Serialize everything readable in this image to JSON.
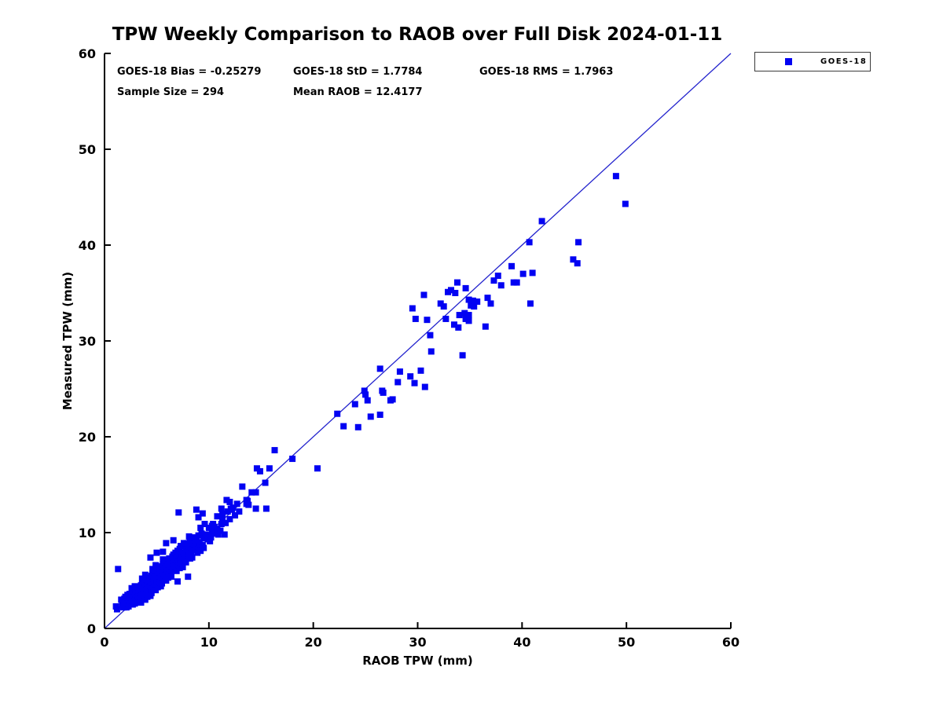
{
  "title": "TPW Weekly Comparison to RAOB over Full Disk 2024-01-11",
  "stats": {
    "bias": "GOES-18 Bias = -0.25279",
    "std": "GOES-18 StD = 1.7784",
    "rms": "GOES-18 RMS = 1.7963",
    "sample_size": "Sample Size = 294",
    "mean_raob": "Mean RAOB = 12.4177"
  },
  "legend": {
    "items": [
      {
        "label": "GOES-18",
        "marker_color": "#0202f2"
      }
    ]
  },
  "colors": {
    "marker": "#0202f2",
    "reference_line": "#2323cd",
    "axis": "#000000",
    "background": "#ffffff"
  },
  "chart_data": {
    "type": "scatter",
    "title": "TPW Weekly Comparison to RAOB over Full Disk 2024-01-11",
    "xlabel": "RAOB TPW (mm)",
    "ylabel": "Measured TPW (mm)",
    "xlim": [
      0,
      60
    ],
    "ylim": [
      0,
      60
    ],
    "xticks": [
      0,
      10,
      20,
      30,
      40,
      50,
      60
    ],
    "yticks": [
      0,
      10,
      20,
      30,
      40,
      50,
      60
    ],
    "grid": false,
    "legend_position": "outside-top-right",
    "stats": {
      "bias": -0.25279,
      "std": 1.7784,
      "rms": 1.7963,
      "sample_size": 294,
      "mean_raob": 12.4177
    },
    "reference_line": {
      "from": [
        0,
        0
      ],
      "to": [
        60,
        60
      ]
    },
    "series": [
      {
        "name": "GOES-18",
        "marker": "square",
        "marker_size_px": 8,
        "color": "#0202f2",
        "points": [
          [
            1.1,
            2.3
          ],
          [
            1.2,
            2.0
          ],
          [
            1.3,
            6.2
          ],
          [
            1.6,
            3.0
          ],
          [
            1.7,
            2.4
          ],
          [
            1.8,
            2.9
          ],
          [
            1.8,
            2.2
          ],
          [
            1.9,
            3.1
          ],
          [
            1.9,
            2.7
          ],
          [
            2.0,
            2.5
          ],
          [
            2.0,
            3.3
          ],
          [
            2.1,
            2.8
          ],
          [
            2.1,
            2.2
          ],
          [
            2.2,
            3.5
          ],
          [
            2.2,
            2.6
          ],
          [
            2.3,
            3.0
          ],
          [
            2.3,
            2.3
          ],
          [
            2.4,
            3.6
          ],
          [
            2.4,
            2.8
          ],
          [
            2.5,
            3.2
          ],
          [
            2.5,
            2.5
          ],
          [
            2.6,
            2.9
          ],
          [
            2.6,
            3.6
          ],
          [
            2.6,
            4.2
          ],
          [
            2.7,
            2.5
          ],
          [
            2.7,
            3.2
          ],
          [
            2.8,
            3.9
          ],
          [
            2.8,
            2.8
          ],
          [
            2.9,
            3.4
          ],
          [
            2.9,
            2.6
          ],
          [
            2.9,
            4.4
          ],
          [
            3.0,
            4.1
          ],
          [
            3.0,
            3.0
          ],
          [
            3.0,
            3.6
          ],
          [
            3.1,
            2.8
          ],
          [
            3.1,
            3.9
          ],
          [
            3.2,
            3.3
          ],
          [
            3.2,
            4.3
          ],
          [
            3.3,
            2.9
          ],
          [
            3.3,
            3.7
          ],
          [
            3.4,
            4.0
          ],
          [
            3.4,
            3.1
          ],
          [
            3.5,
            4.5
          ],
          [
            3.5,
            3.4
          ],
          [
            3.5,
            2.7
          ],
          [
            3.6,
            3.8
          ],
          [
            3.6,
            4.6
          ],
          [
            3.6,
            5.2
          ],
          [
            3.7,
            3.2
          ],
          [
            3.7,
            4.2
          ],
          [
            3.8,
            4.9
          ],
          [
            3.8,
            3.5
          ],
          [
            3.9,
            4.4
          ],
          [
            3.9,
            3.0
          ],
          [
            3.9,
            5.6
          ],
          [
            4.0,
            5.1
          ],
          [
            4.0,
            4.0
          ],
          [
            4.0,
            3.6
          ],
          [
            4.1,
            4.7
          ],
          [
            4.1,
            3.3
          ],
          [
            4.2,
            5.3
          ],
          [
            4.2,
            4.2
          ],
          [
            4.3,
            3.8
          ],
          [
            4.3,
            4.9
          ],
          [
            4.4,
            4.4
          ],
          [
            4.4,
            3.4
          ],
          [
            4.4,
            7.4
          ],
          [
            4.5,
            5.5
          ],
          [
            4.5,
            4.1
          ],
          [
            4.5,
            3.7
          ],
          [
            4.6,
            4.8
          ],
          [
            4.6,
            5.7
          ],
          [
            4.6,
            6.2
          ],
          [
            4.7,
            4.2
          ],
          [
            4.7,
            5.2
          ],
          [
            4.8,
            5.9
          ],
          [
            4.8,
            4.5
          ],
          [
            4.9,
            5.4
          ],
          [
            4.9,
            4.0
          ],
          [
            4.9,
            6.6
          ],
          [
            5.0,
            6.1
          ],
          [
            5.0,
            5.0
          ],
          [
            5.0,
            4.6
          ],
          [
            5.0,
            7.9
          ],
          [
            5.1,
            5.7
          ],
          [
            5.1,
            4.3
          ],
          [
            5.2,
            6.3
          ],
          [
            5.2,
            5.2
          ],
          [
            5.3,
            4.8
          ],
          [
            5.3,
            5.9
          ],
          [
            5.4,
            5.4
          ],
          [
            5.4,
            4.4
          ],
          [
            5.5,
            6.5
          ],
          [
            5.5,
            5.1
          ],
          [
            5.5,
            4.7
          ],
          [
            5.6,
            5.8
          ],
          [
            5.6,
            6.7
          ],
          [
            5.6,
            7.2
          ],
          [
            5.6,
            8.0
          ],
          [
            5.7,
            5.2
          ],
          [
            5.7,
            6.2
          ],
          [
            5.8,
            6.9
          ],
          [
            5.8,
            5.5
          ],
          [
            5.9,
            6.4
          ],
          [
            5.9,
            5.0
          ],
          [
            5.9,
            8.9
          ],
          [
            6.0,
            7.1
          ],
          [
            6.0,
            6.0
          ],
          [
            6.0,
            5.6
          ],
          [
            6.1,
            6.7
          ],
          [
            6.1,
            5.3
          ],
          [
            6.2,
            7.3
          ],
          [
            6.2,
            6.2
          ],
          [
            6.3,
            5.8
          ],
          [
            6.3,
            6.9
          ],
          [
            6.4,
            6.4
          ],
          [
            6.4,
            5.4
          ],
          [
            6.5,
            7.5
          ],
          [
            6.5,
            6.1
          ],
          [
            6.6,
            6.8
          ],
          [
            6.6,
            7.7
          ],
          [
            6.6,
            9.2
          ],
          [
            6.7,
            6.2
          ],
          [
            6.7,
            7.2
          ],
          [
            6.8,
            7.9
          ],
          [
            6.8,
            6.5
          ],
          [
            6.9,
            7.4
          ],
          [
            6.9,
            6.0
          ],
          [
            7.0,
            8.1
          ],
          [
            7.0,
            7.0
          ],
          [
            7.0,
            4.9
          ],
          [
            7.1,
            6.6
          ],
          [
            7.1,
            7.7
          ],
          [
            7.1,
            12.1
          ],
          [
            7.2,
            6.3
          ],
          [
            7.2,
            8.3
          ],
          [
            7.3,
            7.2
          ],
          [
            7.3,
            6.8
          ],
          [
            7.3,
            8.6
          ],
          [
            7.4,
            7.9
          ],
          [
            7.4,
            7.4
          ],
          [
            7.5,
            6.4
          ],
          [
            7.6,
            7.8
          ],
          [
            7.6,
            8.7
          ],
          [
            7.6,
            8.9
          ],
          [
            7.7,
            7.2
          ],
          [
            7.8,
            8.2
          ],
          [
            7.8,
            6.9
          ],
          [
            7.9,
            8.9
          ],
          [
            8.0,
            8.0
          ],
          [
            8.0,
            7.5
          ],
          [
            8.0,
            5.4
          ],
          [
            8.1,
            8.5
          ],
          [
            8.1,
            9.6
          ],
          [
            8.2,
            7.3
          ],
          [
            8.2,
            9.1
          ],
          [
            8.3,
            8.2
          ],
          [
            8.3,
            7.8
          ],
          [
            8.4,
            8.9
          ],
          [
            8.4,
            7.4
          ],
          [
            8.5,
            9.3
          ],
          [
            8.6,
            8.8
          ],
          [
            8.6,
            9.5
          ],
          [
            8.7,
            8.2
          ],
          [
            8.7,
            9.2
          ],
          [
            8.8,
            9.2
          ],
          [
            8.8,
            12.4
          ],
          [
            8.9,
            7.9
          ],
          [
            9.0,
            9.7
          ],
          [
            9.0,
            8.5
          ],
          [
            9.0,
            11.6
          ],
          [
            9.1,
            9.0
          ],
          [
            9.1,
            8.4
          ],
          [
            9.2,
            8.1
          ],
          [
            9.2,
            10.5
          ],
          [
            9.3,
            9.9
          ],
          [
            9.4,
            8.7
          ],
          [
            9.4,
            12.0
          ],
          [
            9.5,
            9.4
          ],
          [
            9.5,
            8.4
          ],
          [
            9.6,
            10.9
          ],
          [
            9.7,
            9.8
          ],
          [
            9.9,
            9.3
          ],
          [
            10.0,
            10.5
          ],
          [
            10.1,
            9.6
          ],
          [
            10.1,
            9.1
          ],
          [
            10.2,
            9.5
          ],
          [
            10.3,
            10.7
          ],
          [
            10.3,
            10.0
          ],
          [
            10.4,
            10.9
          ],
          [
            10.5,
            10.6
          ],
          [
            10.6,
            9.9
          ],
          [
            10.8,
            11.7
          ],
          [
            10.8,
            10.4
          ],
          [
            10.9,
            9.8
          ],
          [
            11.1,
            10.2
          ],
          [
            11.2,
            12.5
          ],
          [
            11.2,
            10.9
          ],
          [
            11.3,
            11.5
          ],
          [
            11.3,
            12.0
          ],
          [
            11.5,
            9.8
          ],
          [
            11.6,
            11.0
          ],
          [
            11.7,
            13.4
          ],
          [
            11.8,
            12.2
          ],
          [
            12.0,
            13.2
          ],
          [
            12.0,
            11.4
          ],
          [
            12.1,
            12.5
          ],
          [
            12.2,
            12.4
          ],
          [
            12.3,
            12.6
          ],
          [
            12.5,
            11.8
          ],
          [
            12.7,
            13.0
          ],
          [
            12.9,
            12.2
          ],
          [
            13.2,
            14.8
          ],
          [
            13.6,
            13.4
          ],
          [
            13.6,
            13.0
          ],
          [
            13.7,
            13.3
          ],
          [
            13.8,
            12.9
          ],
          [
            14.1,
            14.2
          ],
          [
            14.5,
            14.2
          ],
          [
            14.5,
            12.5
          ],
          [
            14.6,
            16.7
          ],
          [
            14.9,
            16.4
          ],
          [
            15.4,
            15.2
          ],
          [
            15.5,
            12.5
          ],
          [
            15.8,
            16.7
          ],
          [
            16.3,
            18.6
          ],
          [
            18.0,
            17.7
          ],
          [
            20.4,
            16.7
          ],
          [
            22.3,
            22.4
          ],
          [
            22.9,
            21.1
          ],
          [
            24.0,
            23.4
          ],
          [
            24.3,
            21.0
          ],
          [
            24.9,
            24.8
          ],
          [
            25.0,
            24.4
          ],
          [
            25.2,
            23.8
          ],
          [
            25.5,
            22.1
          ],
          [
            26.4,
            27.1
          ],
          [
            26.4,
            22.3
          ],
          [
            26.6,
            24.8
          ],
          [
            26.7,
            24.6
          ],
          [
            27.4,
            23.8
          ],
          [
            27.6,
            23.9
          ],
          [
            28.1,
            25.7
          ],
          [
            28.3,
            26.8
          ],
          [
            29.3,
            26.3
          ],
          [
            29.5,
            33.4
          ],
          [
            29.7,
            25.6
          ],
          [
            29.8,
            32.3
          ],
          [
            30.3,
            26.9
          ],
          [
            30.6,
            34.8
          ],
          [
            30.7,
            25.2
          ],
          [
            30.9,
            32.2
          ],
          [
            31.2,
            30.6
          ],
          [
            31.3,
            28.9
          ],
          [
            32.2,
            33.9
          ],
          [
            32.5,
            33.6
          ],
          [
            32.7,
            32.3
          ],
          [
            32.9,
            35.1
          ],
          [
            33.2,
            35.3
          ],
          [
            33.5,
            31.7
          ],
          [
            33.6,
            35.0
          ],
          [
            33.8,
            36.1
          ],
          [
            33.9,
            31.4
          ],
          [
            34.0,
            32.7
          ],
          [
            34.3,
            28.5
          ],
          [
            34.5,
            32.9
          ],
          [
            34.6,
            35.5
          ],
          [
            34.6,
            32.3
          ],
          [
            34.9,
            34.3
          ],
          [
            34.9,
            32.7
          ],
          [
            34.9,
            32.1
          ],
          [
            35.1,
            33.7
          ],
          [
            35.3,
            34.2
          ],
          [
            35.4,
            33.6
          ],
          [
            35.7,
            34.1
          ],
          [
            36.5,
            31.5
          ],
          [
            36.7,
            34.5
          ],
          [
            37.0,
            33.9
          ],
          [
            37.3,
            36.3
          ],
          [
            37.7,
            36.8
          ],
          [
            38.0,
            35.8
          ],
          [
            39.0,
            37.8
          ],
          [
            39.2,
            36.1
          ],
          [
            39.5,
            36.1
          ],
          [
            40.1,
            37.0
          ],
          [
            40.7,
            40.3
          ],
          [
            40.8,
            33.9
          ],
          [
            41.0,
            37.1
          ],
          [
            41.9,
            42.5
          ],
          [
            44.9,
            38.5
          ],
          [
            45.3,
            38.1
          ],
          [
            45.4,
            40.3
          ],
          [
            49.0,
            47.2
          ],
          [
            49.9,
            44.3
          ]
        ]
      }
    ]
  }
}
